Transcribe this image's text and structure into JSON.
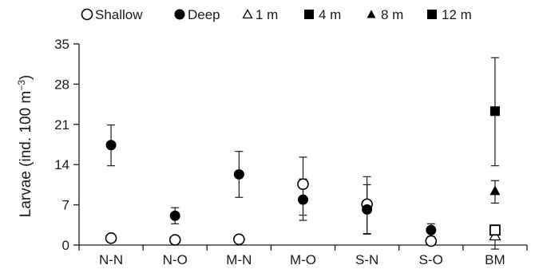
{
  "chart_data": {
    "type": "scatter",
    "ylabel_main": "Larvae (ind. 100 m",
    "ylabel_sup": "−3",
    "ylabel_close": ")",
    "xlabel": "",
    "ylim": [
      0,
      35
    ],
    "yticks": [
      0,
      7,
      14,
      21,
      28,
      35
    ],
    "categories": [
      "N-N",
      "N-O",
      "M-N",
      "M-O",
      "S-N",
      "S-O",
      "BM"
    ],
    "legend_position": "top",
    "grid": false,
    "series": [
      {
        "name": "Shallow",
        "marker": "circle-open",
        "color": "#000000",
        "points": [
          {
            "category": "N-N",
            "y": 1.2
          },
          {
            "category": "N-O",
            "y": 0.9
          },
          {
            "category": "M-N",
            "y": 1.0
          },
          {
            "category": "M-O",
            "y": 10.6,
            "err_low": 5.2,
            "err_high": 15.3
          },
          {
            "category": "S-N",
            "y": 7.1,
            "err_low": 1.9,
            "err_high": 11.9
          },
          {
            "category": "S-O",
            "y": 0.7
          }
        ]
      },
      {
        "name": "Deep",
        "marker": "circle-filled",
        "color": "#000000",
        "points": [
          {
            "category": "N-N",
            "y": 17.4,
            "err_low": 13.8,
            "err_high": 20.9
          },
          {
            "category": "N-O",
            "y": 5.1,
            "err_low": 3.7,
            "err_high": 6.5
          },
          {
            "category": "M-N",
            "y": 12.3,
            "err_low": 8.3,
            "err_high": 16.3
          },
          {
            "category": "M-O",
            "y": 7.9,
            "err_low": 4.3,
            "err_high": 11.5
          },
          {
            "category": "S-N",
            "y": 6.2,
            "err_low": 2.0,
            "err_high": 10.5
          },
          {
            "category": "S-O",
            "y": 2.6,
            "err_low": 1.5,
            "err_high": 3.7
          }
        ]
      },
      {
        "name": "1 m",
        "marker": "triangle-open",
        "color": "#000000",
        "points": [
          {
            "category": "BM",
            "y": 1.6,
            "err_low": -0.7,
            "err_high": 3.5
          }
        ]
      },
      {
        "name": "4 m",
        "marker": "square-filled",
        "color": "#000000",
        "points": [
          {
            "category": "BM",
            "y": 23.3,
            "err_low": 13.8,
            "err_high": 32.6
          }
        ]
      },
      {
        "name": "8 m",
        "marker": "triangle-filled",
        "color": "#000000",
        "points": [
          {
            "category": "BM",
            "y": 9.4,
            "err_low": 7.3,
            "err_high": 11.2
          }
        ]
      },
      {
        "name": "12 m",
        "marker": "square-open",
        "color": "#000000",
        "points": [
          {
            "category": "BM",
            "y": 2.6,
            "err_low": 2.0,
            "err_high": 3.3
          }
        ]
      }
    ]
  }
}
